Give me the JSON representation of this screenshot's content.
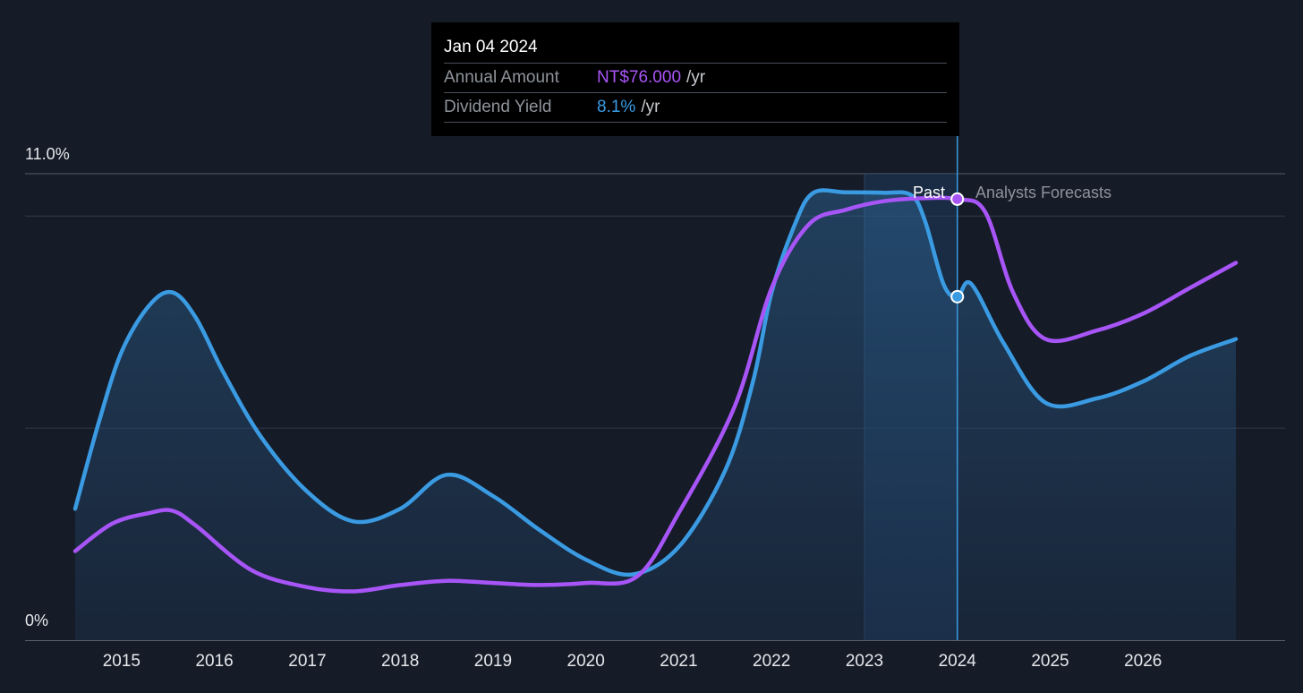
{
  "chart_data": {
    "type": "line",
    "y_axis": {
      "max_label": "11.0%",
      "min_label": "0%",
      "range": [
        0,
        11.0
      ]
    },
    "x_axis": {
      "tick_labels": [
        "2015",
        "2016",
        "2017",
        "2018",
        "2019",
        "2020",
        "2021",
        "2022",
        "2023",
        "2024",
        "2025",
        "2026"
      ],
      "range": [
        2014.5,
        2027.5
      ]
    },
    "grid": true,
    "series": [
      {
        "key": "yield",
        "color": "#3a9be3",
        "area_fill": true,
        "points": [
          [
            2014.5,
            3.1
          ],
          [
            2014.75,
            5.1
          ],
          [
            2015.0,
            6.8
          ],
          [
            2015.3,
            7.9
          ],
          [
            2015.55,
            8.2
          ],
          [
            2015.8,
            7.6
          ],
          [
            2016.1,
            6.3
          ],
          [
            2016.5,
            4.8
          ],
          [
            2017.0,
            3.5
          ],
          [
            2017.5,
            2.8
          ],
          [
            2018.0,
            3.1
          ],
          [
            2018.5,
            3.9
          ],
          [
            2019.0,
            3.4
          ],
          [
            2019.5,
            2.6
          ],
          [
            2020.0,
            1.9
          ],
          [
            2020.5,
            1.55
          ],
          [
            2021.0,
            2.2
          ],
          [
            2021.5,
            4.0
          ],
          [
            2021.8,
            6.1
          ],
          [
            2022.0,
            8.2
          ],
          [
            2022.25,
            9.8
          ],
          [
            2022.45,
            10.55
          ],
          [
            2022.8,
            10.56
          ],
          [
            2023.2,
            10.55
          ],
          [
            2023.5,
            10.5
          ],
          [
            2023.65,
            9.9
          ],
          [
            2023.85,
            8.4
          ],
          [
            2024.0,
            8.1
          ],
          [
            2024.15,
            8.4
          ],
          [
            2024.5,
            7.0
          ],
          [
            2024.95,
            5.6
          ],
          [
            2025.5,
            5.7
          ],
          [
            2026.0,
            6.1
          ],
          [
            2026.5,
            6.7
          ],
          [
            2027.0,
            7.1
          ]
        ]
      },
      {
        "key": "amount",
        "color": "#a855f7",
        "area_fill": false,
        "points": [
          [
            2014.5,
            2.1
          ],
          [
            2014.9,
            2.75
          ],
          [
            2015.3,
            3.0
          ],
          [
            2015.55,
            3.05
          ],
          [
            2015.8,
            2.7
          ],
          [
            2016.4,
            1.65
          ],
          [
            2017.0,
            1.25
          ],
          [
            2017.5,
            1.15
          ],
          [
            2018.0,
            1.3
          ],
          [
            2018.5,
            1.4
          ],
          [
            2019.0,
            1.35
          ],
          [
            2019.5,
            1.3
          ],
          [
            2020.0,
            1.35
          ],
          [
            2020.55,
            1.5
          ],
          [
            2021.0,
            3.0
          ],
          [
            2021.6,
            5.5
          ],
          [
            2022.0,
            8.3
          ],
          [
            2022.4,
            9.8
          ],
          [
            2022.8,
            10.15
          ],
          [
            2023.2,
            10.35
          ],
          [
            2023.6,
            10.42
          ],
          [
            2024.0,
            10.4
          ],
          [
            2024.3,
            10.1
          ],
          [
            2024.6,
            8.2
          ],
          [
            2024.95,
            7.1
          ],
          [
            2025.5,
            7.3
          ],
          [
            2026.0,
            7.7
          ],
          [
            2026.5,
            8.3
          ],
          [
            2027.0,
            8.9
          ]
        ]
      }
    ],
    "highlight_range": [
      2023.0,
      2024.0
    ],
    "current_marker": {
      "x": 2024.0,
      "yield_value": 8.1,
      "amount_value": 10.4
    },
    "past_label": "Past",
    "forecast_label": "Analysts Forecasts"
  },
  "tooltip": {
    "date": "Jan 04 2024",
    "rows": [
      {
        "label": "Annual Amount",
        "value": "NT$76.000",
        "unit": "/yr",
        "color": "#a855f7"
      },
      {
        "label": "Dividend Yield",
        "value": "8.1%",
        "unit": "/yr",
        "color": "#3a9be3"
      }
    ]
  }
}
